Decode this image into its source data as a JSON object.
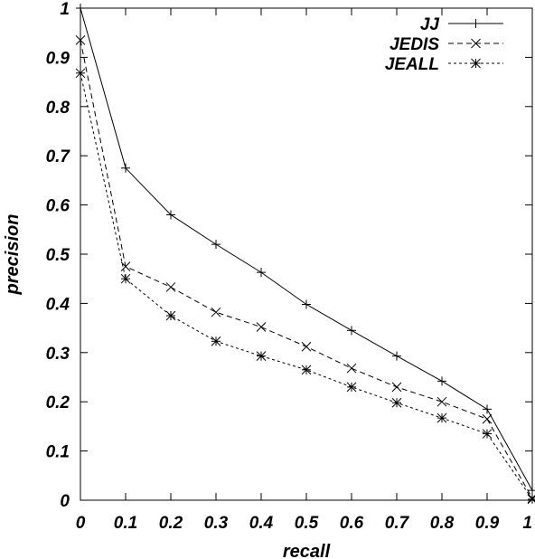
{
  "chart_data": {
    "type": "line",
    "title": "",
    "xlabel": "recall",
    "ylabel": "precision",
    "xlim": [
      0,
      1
    ],
    "ylim": [
      0,
      1
    ],
    "grid": false,
    "legend_position": "top-right",
    "x_ticks": [
      0,
      0.1,
      0.2,
      0.3,
      0.4,
      0.5,
      0.6,
      0.7,
      0.8,
      0.9,
      1
    ],
    "x_tick_labels": [
      "0",
      "0.1",
      "0.2",
      "0.3",
      "0.4",
      "0.5",
      "0.6",
      "0.7",
      "0.8",
      "0.9",
      "1"
    ],
    "y_ticks": [
      0,
      0.1,
      0.2,
      0.3,
      0.4,
      0.5,
      0.6,
      0.7,
      0.8,
      0.9,
      1
    ],
    "y_tick_labels": [
      "0",
      "0.1",
      "0.2",
      "0.3",
      "0.4",
      "0.5",
      "0.6",
      "0.7",
      "0.8",
      "0.9",
      "1"
    ],
    "x": [
      0,
      0.1,
      0.2,
      0.3,
      0.4,
      0.5,
      0.6,
      0.7,
      0.8,
      0.9,
      1
    ],
    "series": [
      {
        "name": "JJ",
        "marker": "plus",
        "dash": "solid",
        "values": [
          1.0,
          0.675,
          0.58,
          0.52,
          0.463,
          0.398,
          0.345,
          0.293,
          0.242,
          0.185,
          0.02
        ]
      },
      {
        "name": "JEDIS",
        "marker": "cross",
        "dash": "dashed",
        "values": [
          0.935,
          0.475,
          0.433,
          0.382,
          0.352,
          0.312,
          0.268,
          0.23,
          0.2,
          0.165,
          0.004
        ]
      },
      {
        "name": "JEALL",
        "marker": "star",
        "dash": "dotted",
        "values": [
          0.868,
          0.45,
          0.375,
          0.323,
          0.293,
          0.265,
          0.23,
          0.198,
          0.167,
          0.135,
          0.002
        ]
      }
    ]
  }
}
